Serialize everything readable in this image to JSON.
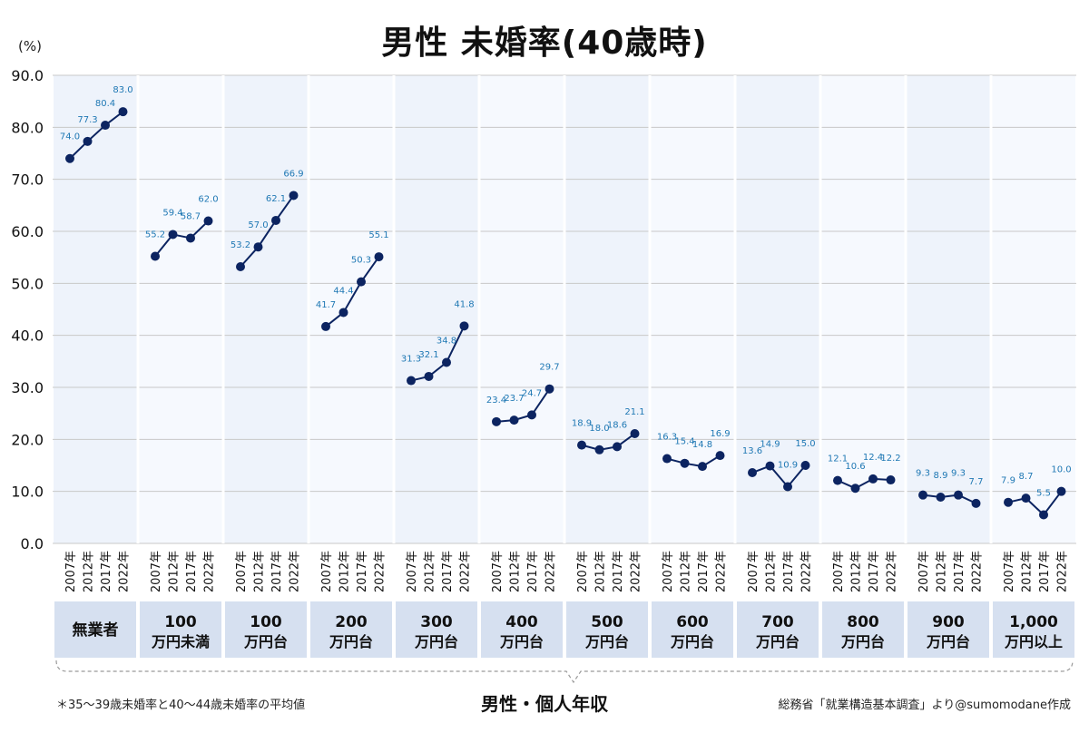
{
  "header": {
    "title": "男性 未婚率(40歳時)",
    "unit": "(%)"
  },
  "footer": {
    "footnote": "＊35〜39歳未婚率と40〜44歳未婚率の平均値",
    "xlabel": "男性・個人年収",
    "source": "総務省「就業構造基本調査」より@sumomodane作成"
  },
  "colors": {
    "line": "#0c2461",
    "point": "#0c2461",
    "data_label": "#1f78b4",
    "band_even": "#eef3fb",
    "band_odd": "#f6f9fe",
    "category_box": "#d6e0f0",
    "grid": "#c8c8c8"
  },
  "chart_data": {
    "type": "line",
    "title": "男性 未婚率(40歳時)",
    "xlabel": "男性・個人年収",
    "ylabel": "(%)",
    "ylim": [
      0,
      90
    ],
    "yticks": [
      "0.0",
      "10.0",
      "20.0",
      "30.0",
      "40.0",
      "50.0",
      "60.0",
      "70.0",
      "80.0",
      "90.0"
    ],
    "grid": true,
    "years": [
      "2007年",
      "2012年",
      "2017年",
      "2022年"
    ],
    "groups": [
      {
        "label": [
          "無業者"
        ],
        "values": [
          74.0,
          77.3,
          80.4,
          83.0
        ],
        "labels": [
          "74.0",
          "77.3",
          "80.4",
          "83.0"
        ]
      },
      {
        "label": [
          "100",
          "万円未満"
        ],
        "values": [
          55.2,
          59.4,
          58.7,
          62.0
        ],
        "labels": [
          "55.2",
          "59.4",
          "58.7",
          "62.0"
        ]
      },
      {
        "label": [
          "100",
          "万円台"
        ],
        "values": [
          53.2,
          57.0,
          62.1,
          66.9
        ],
        "labels": [
          "53.2",
          "57.0",
          "62.1",
          "66.9"
        ]
      },
      {
        "label": [
          "200",
          "万円台"
        ],
        "values": [
          41.7,
          44.4,
          50.3,
          55.1
        ],
        "labels": [
          "41.7",
          "44.4",
          "50.3",
          "55.1"
        ]
      },
      {
        "label": [
          "300",
          "万円台"
        ],
        "values": [
          31.3,
          32.1,
          34.8,
          41.8
        ],
        "labels": [
          "31.3",
          "32.1",
          "34.8",
          "41.8"
        ]
      },
      {
        "label": [
          "400",
          "万円台"
        ],
        "values": [
          23.4,
          23.7,
          24.7,
          29.7
        ],
        "labels": [
          "23.4",
          "23.7",
          "24.7",
          "29.7"
        ]
      },
      {
        "label": [
          "500",
          "万円台"
        ],
        "values": [
          18.9,
          18.0,
          18.6,
          21.1
        ],
        "labels": [
          "18.9",
          "18.0",
          "18.6",
          "21.1"
        ]
      },
      {
        "label": [
          "600",
          "万円台"
        ],
        "values": [
          16.3,
          15.4,
          14.8,
          16.9
        ],
        "labels": [
          "16.3",
          "15.4",
          "14.8",
          "16.9"
        ]
      },
      {
        "label": [
          "700",
          "万円台"
        ],
        "values": [
          13.6,
          14.9,
          10.9,
          15.0
        ],
        "labels": [
          "13.6",
          "14.9",
          "10.9",
          "15.0"
        ]
      },
      {
        "label": [
          "800",
          "万円台"
        ],
        "values": [
          12.1,
          10.6,
          12.4,
          12.2
        ],
        "labels": [
          "12.1",
          "10.6",
          "12.4",
          "12.2"
        ]
      },
      {
        "label": [
          "900",
          "万円台"
        ],
        "values": [
          9.3,
          8.9,
          9.3,
          7.7
        ],
        "labels": [
          "9.3",
          "8.9",
          "9.3",
          "7.7"
        ]
      },
      {
        "label": [
          "1,000",
          "万円以上"
        ],
        "values": [
          7.9,
          8.7,
          5.5,
          10.0
        ],
        "labels": [
          "7.9",
          "8.7",
          "5.5",
          "10.0"
        ]
      }
    ]
  }
}
